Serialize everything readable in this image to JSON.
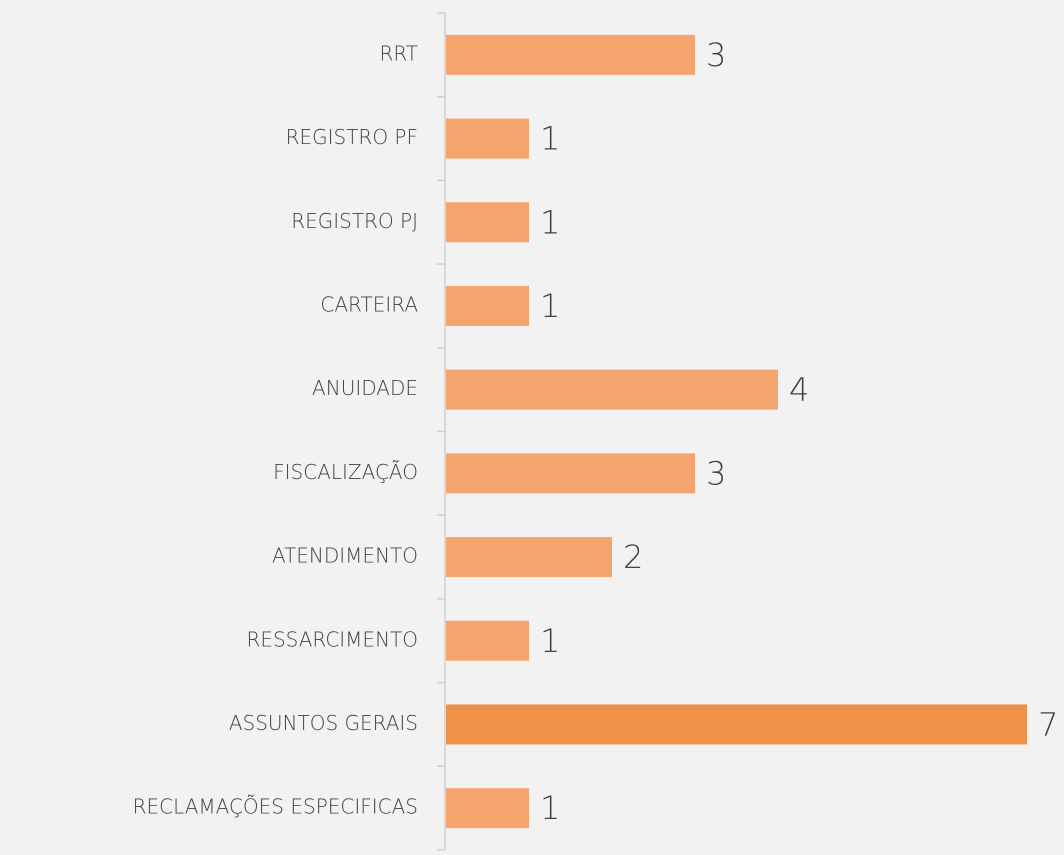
{
  "chart_data": {
    "type": "bar",
    "orientation": "horizontal",
    "categories": [
      "RRT",
      "REGISTRO PF",
      "REGISTRO PJ",
      "CARTEIRA",
      "ANUIDADE",
      "FISCALIZAÇÃO",
      "ATENDIMENTO",
      "RESSARCIMENTO",
      "ASSUNTOS GERAIS",
      "RECLAMAÇÕES ESPECIFICAS"
    ],
    "values": [
      3,
      1,
      1,
      1,
      4,
      3,
      2,
      1,
      7,
      1
    ],
    "colors": [
      "#f4a56e",
      "#f4a56e",
      "#f4a56e",
      "#f4a56e",
      "#f4a56e",
      "#f4a56e",
      "#f4a56e",
      "#f4a56e",
      "#ee9149",
      "#f4a56e"
    ]
  }
}
